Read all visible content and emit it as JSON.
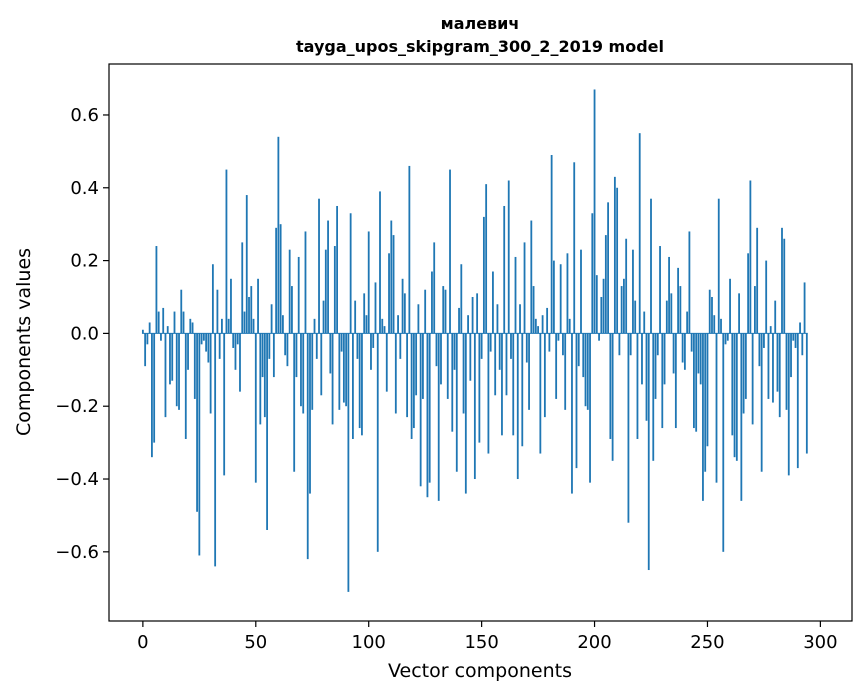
{
  "chart_data": {
    "type": "bar",
    "title": "малевич",
    "subtitle": "tayga_upos_skipgram_300_2_2019 model",
    "xlabel": "Vector components",
    "ylabel": "Components values",
    "xlim": [
      -15,
      314
    ],
    "ylim": [
      -0.79,
      0.74
    ],
    "xticks": [
      0,
      50,
      100,
      150,
      200,
      250,
      300
    ],
    "xtick_labels": [
      "0",
      "50",
      "100",
      "150",
      "200",
      "250",
      "300"
    ],
    "yticks": [
      -0.6,
      -0.4,
      -0.2,
      0.0,
      0.2,
      0.4,
      0.6
    ],
    "ytick_labels": [
      "−0.6",
      "−0.4",
      "−0.2",
      "0.0",
      "0.2",
      "0.4",
      "0.6"
    ],
    "grid": false,
    "bar_color": "#1f77b4",
    "x": "0..299 (component index)",
    "values": [
      0.01,
      -0.09,
      -0.03,
      0.03,
      -0.34,
      -0.3,
      0.24,
      0.06,
      -0.02,
      0.07,
      -0.23,
      0.02,
      -0.14,
      -0.13,
      0.06,
      -0.2,
      -0.21,
      0.12,
      0.06,
      -0.29,
      -0.1,
      0.04,
      0.03,
      -0.18,
      -0.49,
      -0.61,
      -0.03,
      -0.02,
      -0.05,
      -0.08,
      -0.22,
      0.19,
      -0.64,
      0.12,
      -0.07,
      0.04,
      -0.39,
      0.45,
      0.04,
      0.15,
      -0.04,
      -0.1,
      -0.03,
      -0.16,
      0.25,
      0.06,
      0.38,
      0.1,
      0.13,
      0.04,
      -0.41,
      0.15,
      -0.25,
      -0.12,
      -0.23,
      -0.54,
      -0.07,
      0.08,
      -0.12,
      0.29,
      0.54,
      0.3,
      0.05,
      -0.06,
      -0.09,
      0.23,
      0.13,
      -0.38,
      -0.12,
      0.21,
      -0.2,
      -0.22,
      0.28,
      -0.62,
      -0.44,
      -0.21,
      0.04,
      -0.07,
      0.37,
      -0.17,
      0.09,
      0.23,
      0.31,
      -0.11,
      -0.25,
      0.24,
      0.35,
      -0.21,
      -0.05,
      -0.19,
      -0.2,
      -0.71,
      0.33,
      -0.29,
      0.09,
      -0.07,
      -0.26,
      -0.28,
      0.11,
      0.05,
      0.28,
      -0.1,
      -0.04,
      0.14,
      -0.6,
      0.39,
      0.04,
      0.02,
      -0.16,
      0.22,
      0.31,
      0.27,
      -0.22,
      0.05,
      -0.07,
      0.15,
      0.11,
      -0.23,
      0.46,
      -0.29,
      -0.26,
      -0.17,
      0.08,
      -0.42,
      -0.18,
      0.12,
      -0.45,
      -0.41,
      0.17,
      0.25,
      -0.09,
      -0.46,
      -0.14,
      0.13,
      0.12,
      -0.18,
      0.45,
      -0.27,
      -0.1,
      -0.38,
      0.07,
      0.19,
      -0.22,
      -0.44,
      0.05,
      -0.13,
      0.1,
      -0.4,
      0.11,
      -0.3,
      -0.07,
      0.32,
      0.41,
      -0.33,
      -0.05,
      0.17,
      -0.17,
      0.08,
      -0.1,
      -0.28,
      0.35,
      -0.17,
      0.42,
      -0.07,
      -0.28,
      0.21,
      -0.4,
      0.08,
      -0.31,
      0.25,
      -0.08,
      -0.21,
      0.31,
      0.13,
      0.04,
      0.02,
      -0.33,
      0.05,
      -0.23,
      0.07,
      -0.05,
      0.49,
      0.2,
      -0.18,
      -0.02,
      0.19,
      -0.06,
      -0.21,
      0.22,
      0.04,
      -0.44,
      0.47,
      -0.37,
      -0.09,
      0.23,
      -0.12,
      -0.2,
      -0.21,
      -0.41,
      0.33,
      0.67,
      0.16,
      -0.02,
      0.1,
      0.15,
      0.27,
      0.36,
      -0.29,
      -0.35,
      0.43,
      0.4,
      -0.06,
      0.13,
      0.15,
      0.26,
      -0.52,
      -0.06,
      0.23,
      0.09,
      -0.29,
      0.55,
      -0.14,
      0.06,
      -0.24,
      -0.65,
      0.37,
      -0.35,
      -0.18,
      -0.06,
      0.24,
      -0.26,
      -0.14,
      0.09,
      0.21,
      0.11,
      -0.11,
      -0.26,
      0.18,
      0.13,
      -0.08,
      -0.1,
      0.06,
      0.28,
      -0.05,
      -0.26,
      -0.27,
      -0.11,
      -0.14,
      -0.46,
      -0.38,
      -0.31,
      0.12,
      0.1,
      0.05,
      -0.41,
      0.37,
      0.04,
      -0.6,
      -0.03,
      -0.02,
      0.15,
      -0.28,
      -0.34,
      -0.35,
      0.11,
      -0.46,
      -0.22,
      -0.18,
      0.22,
      0.42,
      -0.25,
      0.13,
      0.29,
      -0.09,
      -0.38,
      -0.04,
      0.2,
      -0.18,
      0.02,
      -0.19,
      0.09,
      -0.16,
      -0.23,
      0.29,
      0.26,
      -0.21,
      -0.39,
      -0.12,
      -0.02,
      -0.04,
      -0.37,
      0.03,
      -0.06,
      0.14,
      -0.33
    ]
  }
}
